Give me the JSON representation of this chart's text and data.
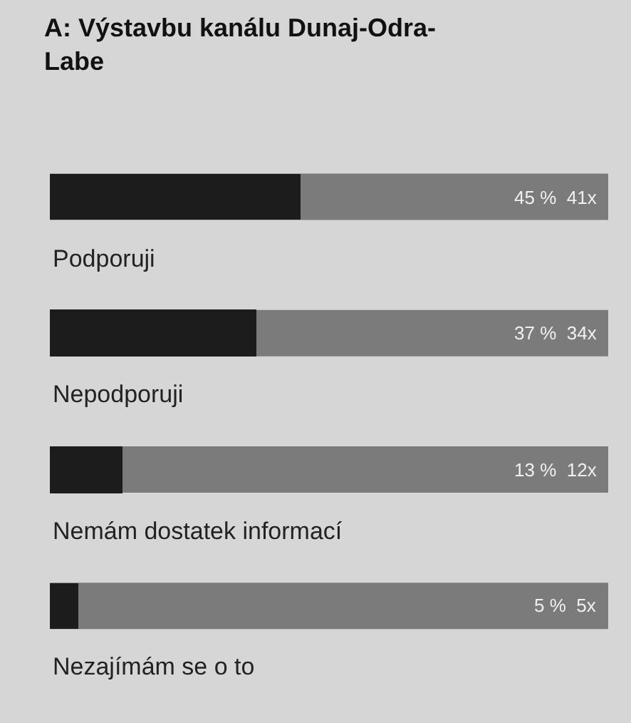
{
  "chart_data": {
    "type": "bar",
    "orientation": "horizontal",
    "title": "A: Výstavbu kanálu Dunaj-Odra-Labe",
    "categories": [
      "Podporuji",
      "Nepodporuji",
      "Nemám dostatek informací",
      "Nezajímám se o to"
    ],
    "values": [
      45,
      37,
      13,
      5
    ],
    "value_labels": [
      "45 %  41x",
      "37 %  34x",
      "13 %  12x",
      "5 %  5x"
    ],
    "color": "#1c1c1c",
    "xlim": [
      0,
      100
    ],
    "grid": false,
    "legend": false
  }
}
